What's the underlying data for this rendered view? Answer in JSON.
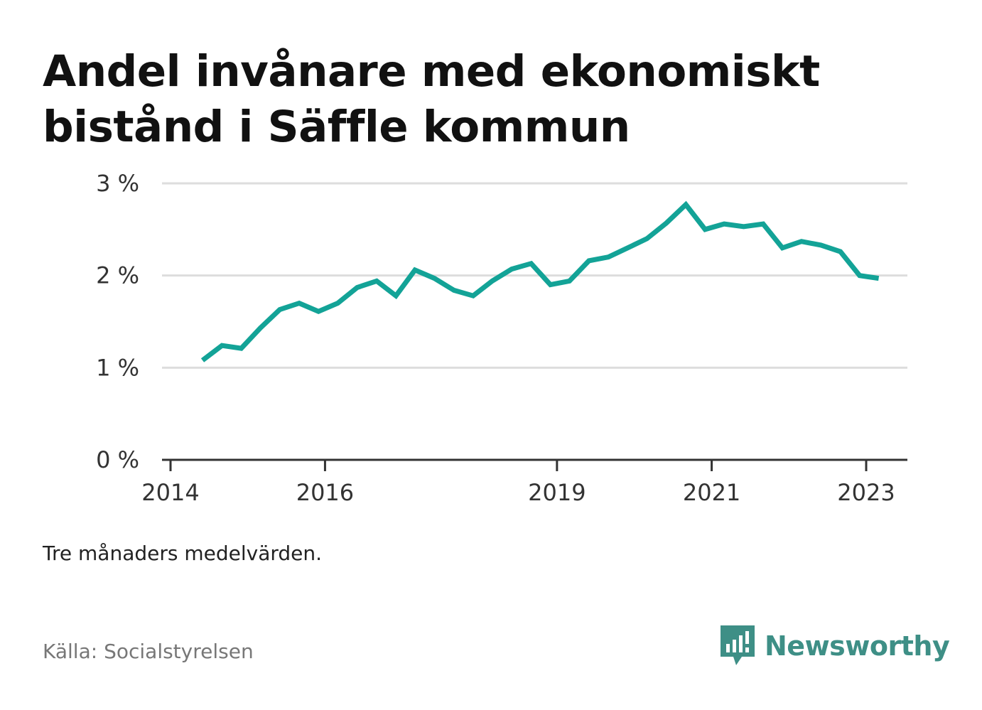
{
  "title": "Andel invånare med ekonomiskt bistånd i Säffle kommun",
  "note": "Tre månaders medelvärden.",
  "source": "Källa: Socialstyrelsen",
  "brand": {
    "name": "Newsworthy",
    "color": "#3e8f86"
  },
  "colors": {
    "line": "#13a397",
    "grid": "#dddddd",
    "axis": "#333333"
  },
  "chart_data": {
    "type": "line",
    "title": "Andel invånare med ekonomiskt bistånd i Säffle kommun",
    "xlabel": "",
    "ylabel": "",
    "ylim": [
      0,
      3
    ],
    "y_ticks": [
      0,
      1,
      2,
      3
    ],
    "y_tick_labels": [
      "0 %",
      "1 %",
      "2 %",
      "3 %"
    ],
    "x_ticks": [
      "2014-01-01",
      "2016-01-01",
      "2019-01-01",
      "2021-01-01",
      "2023-01-01"
    ],
    "x_tick_labels": [
      "2014",
      "2016",
      "2019",
      "2021",
      "2023"
    ],
    "grid": true,
    "series": [
      {
        "x": [
          "2014-06-01",
          "2014-09-01",
          "2014-12-01",
          "2015-03-01",
          "2015-06-01",
          "2015-09-01",
          "2015-12-01",
          "2016-03-01",
          "2016-06-01",
          "2016-09-01",
          "2016-12-01",
          "2017-03-01",
          "2017-06-01",
          "2017-09-01",
          "2017-12-01",
          "2018-03-01",
          "2018-06-01",
          "2018-09-01",
          "2018-12-01",
          "2019-03-01",
          "2019-06-01",
          "2019-09-01",
          "2019-12-01",
          "2020-03-01",
          "2020-06-01",
          "2020-09-01",
          "2020-12-01",
          "2021-03-01",
          "2021-06-01",
          "2021-09-01",
          "2021-12-01",
          "2022-03-01",
          "2022-06-01",
          "2022-09-01",
          "2022-12-01",
          "2023-03-01"
        ],
        "values": [
          1.08,
          1.24,
          1.21,
          1.43,
          1.63,
          1.7,
          1.61,
          1.7,
          1.87,
          1.94,
          1.78,
          2.06,
          1.97,
          1.84,
          1.78,
          1.94,
          2.07,
          2.13,
          1.9,
          1.94,
          2.16,
          2.2,
          2.3,
          2.4,
          2.57,
          2.77,
          2.5,
          2.56,
          2.53,
          2.56,
          2.3,
          2.37,
          2.33,
          2.26,
          2.0,
          1.97
        ]
      }
    ]
  }
}
